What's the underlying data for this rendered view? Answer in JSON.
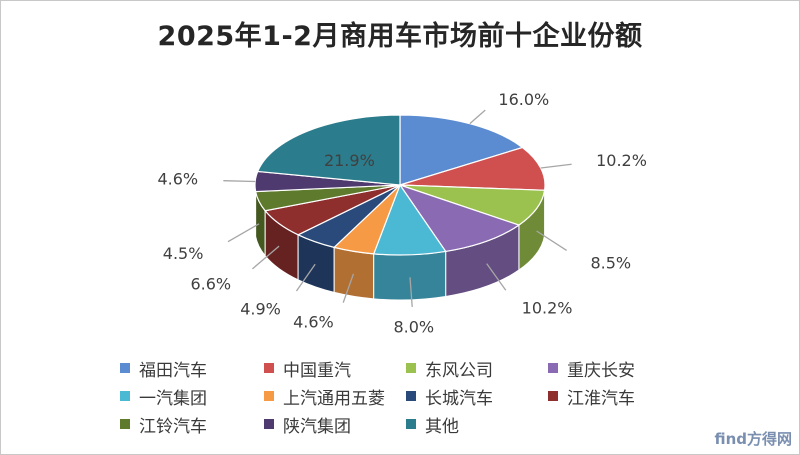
{
  "chart_data": {
    "type": "pie",
    "title": "2025年1-2月商用车市场前十企业份额",
    "slices": [
      {
        "name": "福田汽车",
        "value": 16.0,
        "label": "16.0%",
        "color": "#5B8BD0"
      },
      {
        "name": "中国重汽",
        "value": 10.2,
        "label": "10.2%",
        "color": "#D0504F"
      },
      {
        "name": "东风公司",
        "value": 8.5,
        "label": "8.5%",
        "color": "#9BC14E"
      },
      {
        "name": "重庆长安",
        "value": 10.2,
        "label": "10.2%",
        "color": "#8A6BB3"
      },
      {
        "name": "一汽集团",
        "value": 8.0,
        "label": "8.0%",
        "color": "#4BB8D4"
      },
      {
        "name": "上汽通用五菱",
        "value": 4.6,
        "label": "4.6%",
        "color": "#F79A45"
      },
      {
        "name": "长城汽车",
        "value": 4.9,
        "label": "4.9%",
        "color": "#2A4A7C"
      },
      {
        "name": "江淮汽车",
        "value": 6.6,
        "label": "6.6%",
        "color": "#8E2F2E"
      },
      {
        "name": "江铃汽车",
        "value": 4.5,
        "label": "4.5%",
        "color": "#5E7A2C"
      },
      {
        "name": "陕汽集团",
        "value": 4.6,
        "label": "4.6%",
        "color": "#4E3A6E"
      },
      {
        "name": "其他",
        "value": 21.9,
        "label": "21.9%",
        "color": "#2B7C8C"
      }
    ],
    "legend_position": "bottom"
  },
  "watermark": "find方得网"
}
